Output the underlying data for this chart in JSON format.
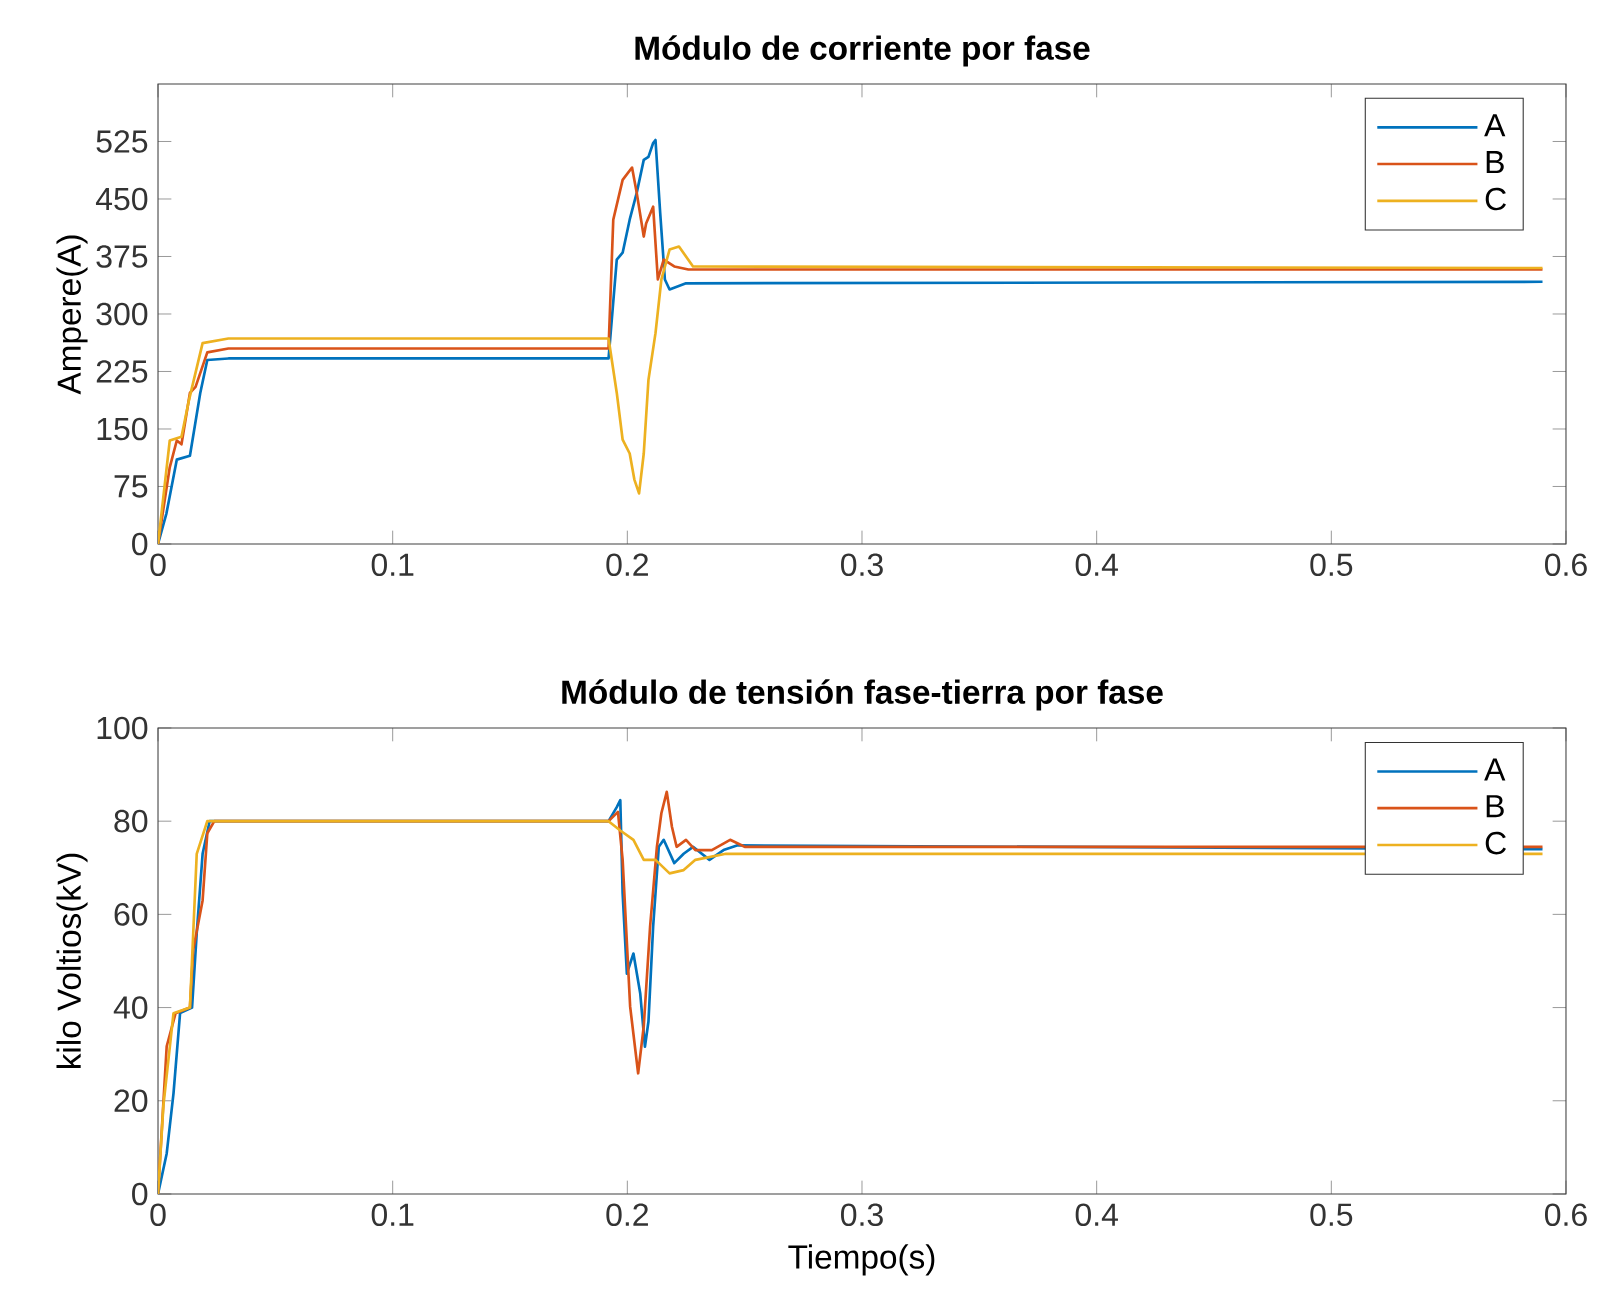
{
  "chart_data": [
    {
      "type": "line",
      "title": "Módulo de corriente por fase",
      "ylabel": "Ampere(A)",
      "xlim": [
        0,
        0.6
      ],
      "ylim": [
        0,
        600
      ],
      "xticks": [
        0,
        0.1,
        0.2,
        0.3,
        0.4,
        0.5,
        0.6
      ],
      "yticks": [
        0,
        75,
        150,
        225,
        300,
        375,
        450,
        525
      ],
      "legend": "top right",
      "grid": false,
      "series": [
        {
          "name": "A",
          "color": "#0072bd",
          "x": [
            0,
            0.0036,
            0.008,
            0.0136,
            0.018,
            0.021,
            0.03,
            0.192,
            0.1955,
            0.198,
            0.201,
            0.204,
            0.207,
            0.209,
            0.211,
            0.212,
            0.214,
            0.216,
            0.218,
            0.225,
            0.59
          ],
          "values": [
            0,
            40,
            110,
            115,
            197,
            240,
            242,
            242,
            371,
            380,
            423,
            458,
            501,
            505,
            523,
            527,
            432,
            345,
            332,
            340,
            342
          ]
        },
        {
          "name": "B",
          "color": "#d95319",
          "x": [
            0,
            0.005,
            0.008,
            0.01,
            0.0136,
            0.016,
            0.021,
            0.03,
            0.192,
            0.194,
            0.198,
            0.202,
            0.204,
            0.207,
            0.208,
            0.211,
            0.213,
            0.2155,
            0.22,
            0.226,
            0.59
          ],
          "values": [
            0,
            100,
            135,
            130,
            197,
            205,
            250,
            255,
            255,
            423,
            475,
            491,
            458,
            401,
            418,
            440,
            345,
            371,
            362,
            358,
            358
          ]
        },
        {
          "name": "C",
          "color": "#edb120",
          "x": [
            0,
            0.005,
            0.01,
            0.013,
            0.019,
            0.03,
            0.192,
            0.1955,
            0.198,
            0.201,
            0.203,
            0.205,
            0.207,
            0.209,
            0.212,
            0.2145,
            0.218,
            0.222,
            0.228,
            0.59
          ],
          "values": [
            0,
            135,
            140,
            185,
            262,
            268,
            268,
            197,
            136,
            118,
            84,
            66,
            118,
            214,
            275,
            345,
            384,
            388,
            362,
            360
          ]
        }
      ]
    },
    {
      "type": "line",
      "title": "Módulo de tensión fase-tierra por fase",
      "xlabel": "Tiempo(s)",
      "ylabel": "kilo Voltios(kV)",
      "xlim": [
        0,
        0.6
      ],
      "ylim": [
        0,
        100
      ],
      "xticks": [
        0,
        0.1,
        0.2,
        0.3,
        0.4,
        0.5,
        0.6
      ],
      "yticks": [
        0,
        20,
        40,
        60,
        80,
        100
      ],
      "legend": "top right",
      "grid": false,
      "series": [
        {
          "name": "A",
          "color": "#0072bd",
          "x": [
            0,
            0.0037,
            0.0066,
            0.0094,
            0.0145,
            0.0165,
            0.019,
            0.022,
            0.192,
            0.1955,
            0.197,
            0.198,
            0.1998,
            0.2026,
            0.2055,
            0.2075,
            0.209,
            0.211,
            0.2134,
            0.2155,
            0.22,
            0.224,
            0.228,
            0.235,
            0.241,
            0.2467,
            0.59
          ],
          "values": [
            0,
            8.7,
            21.6,
            38.8,
            40,
            56,
            73,
            80,
            80,
            83,
            84.5,
            64.5,
            47.3,
            51.6,
            43,
            31.6,
            37,
            57.4,
            74.5,
            76,
            71,
            73,
            74.5,
            71.7,
            73.8,
            74.8,
            74
          ]
        },
        {
          "name": "B",
          "color": "#d95319",
          "x": [
            0,
            0.0037,
            0.0075,
            0.0136,
            0.015,
            0.019,
            0.021,
            0.024,
            0.192,
            0.196,
            0.198,
            0.2012,
            0.2046,
            0.207,
            0.2097,
            0.2126,
            0.2145,
            0.2168,
            0.219,
            0.221,
            0.225,
            0.229,
            0.236,
            0.2438,
            0.25,
            0.59
          ],
          "values": [
            0,
            31.7,
            38.8,
            40,
            52.4,
            63,
            77.4,
            80,
            80,
            82,
            71.7,
            40.2,
            25.9,
            36,
            57.4,
            74.5,
            81.7,
            86.3,
            78.8,
            74.5,
            76,
            73.8,
            73.8,
            76,
            74.5,
            74.5
          ]
        },
        {
          "name": "C",
          "color": "#edb120",
          "x": [
            0,
            0.0023,
            0.0066,
            0.0136,
            0.0165,
            0.021,
            0.192,
            0.197,
            0.2026,
            0.207,
            0.212,
            0.218,
            0.224,
            0.229,
            0.242,
            0.59
          ],
          "values": [
            0,
            19,
            38.8,
            40,
            73,
            80,
            80,
            78,
            76,
            71.7,
            71.7,
            68.8,
            69.5,
            71.7,
            73,
            73
          ]
        }
      ]
    }
  ]
}
